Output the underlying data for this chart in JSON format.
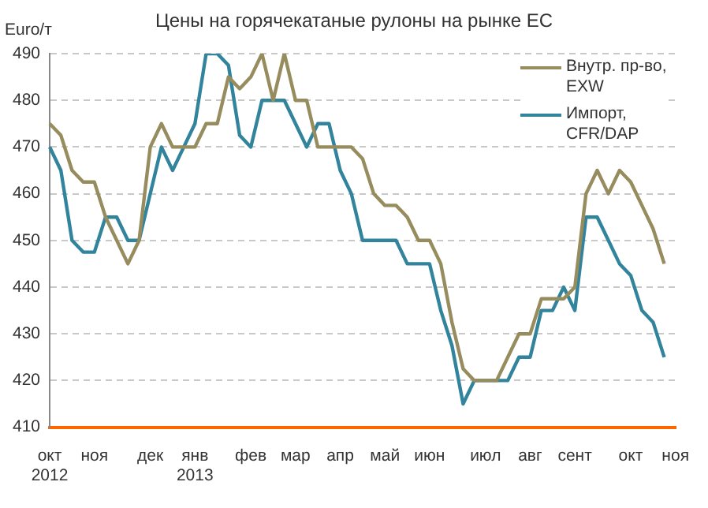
{
  "chart_data": {
    "type": "line",
    "title": "Цены на горячекатаные рулоны на рынке ЕС",
    "ylabel": "Euro/т",
    "categories": [
      "окт\n2012",
      null,
      null,
      null,
      "ноя",
      null,
      null,
      null,
      null,
      "дек",
      null,
      null,
      null,
      "янв\n2013",
      null,
      null,
      null,
      null,
      "фев",
      null,
      null,
      null,
      "мар",
      null,
      null,
      null,
      "апр",
      null,
      null,
      null,
      "май",
      null,
      null,
      null,
      "июн",
      null,
      null,
      null,
      null,
      "июл",
      null,
      null,
      null,
      "авг",
      null,
      null,
      null,
      "сент",
      null,
      null,
      null,
      null,
      "окт",
      null,
      null,
      null,
      "ноя"
    ],
    "series": [
      {
        "name": "Внутр. пр-во,\nEXW",
        "color": "#978c5e",
        "values": [
          475,
          472.5,
          465,
          462.5,
          462.5,
          455,
          450,
          445,
          450,
          470,
          475,
          470,
          470,
          470,
          475,
          475,
          485,
          482.5,
          485,
          490,
          480,
          490,
          480,
          480,
          470,
          470,
          470,
          470,
          467.5,
          460,
          457.5,
          457.5,
          455,
          450,
          450,
          445,
          432.5,
          422.5,
          420,
          420,
          420,
          425,
          430,
          430,
          437.5,
          437.5,
          437.5,
          440,
          460,
          465,
          460,
          465,
          462.5,
          457.5,
          452.5,
          445,
          null
        ]
      },
      {
        "name": "Импорт,\nCFR/DAP",
        "color": "#31849b",
        "values": [
          470,
          465,
          450,
          447.5,
          447.5,
          455,
          455,
          450,
          450,
          460,
          470,
          465,
          470,
          475,
          490,
          490,
          487.5,
          472.5,
          470,
          480,
          480,
          480,
          475,
          470,
          475,
          475,
          465,
          460,
          450,
          450,
          450,
          450,
          445,
          445,
          445,
          435,
          427.5,
          415,
          420,
          420,
          420,
          420,
          425,
          425,
          435,
          435,
          440,
          435,
          455,
          455,
          450,
          445,
          442.5,
          435,
          432.5,
          425,
          null
        ]
      }
    ],
    "ylim": [
      410,
      490
    ],
    "yticks": [
      410,
      420,
      430,
      440,
      450,
      460,
      470,
      480,
      490
    ],
    "grid": "y",
    "legend": "top right",
    "line_style": "solid",
    "marker": "none"
  }
}
